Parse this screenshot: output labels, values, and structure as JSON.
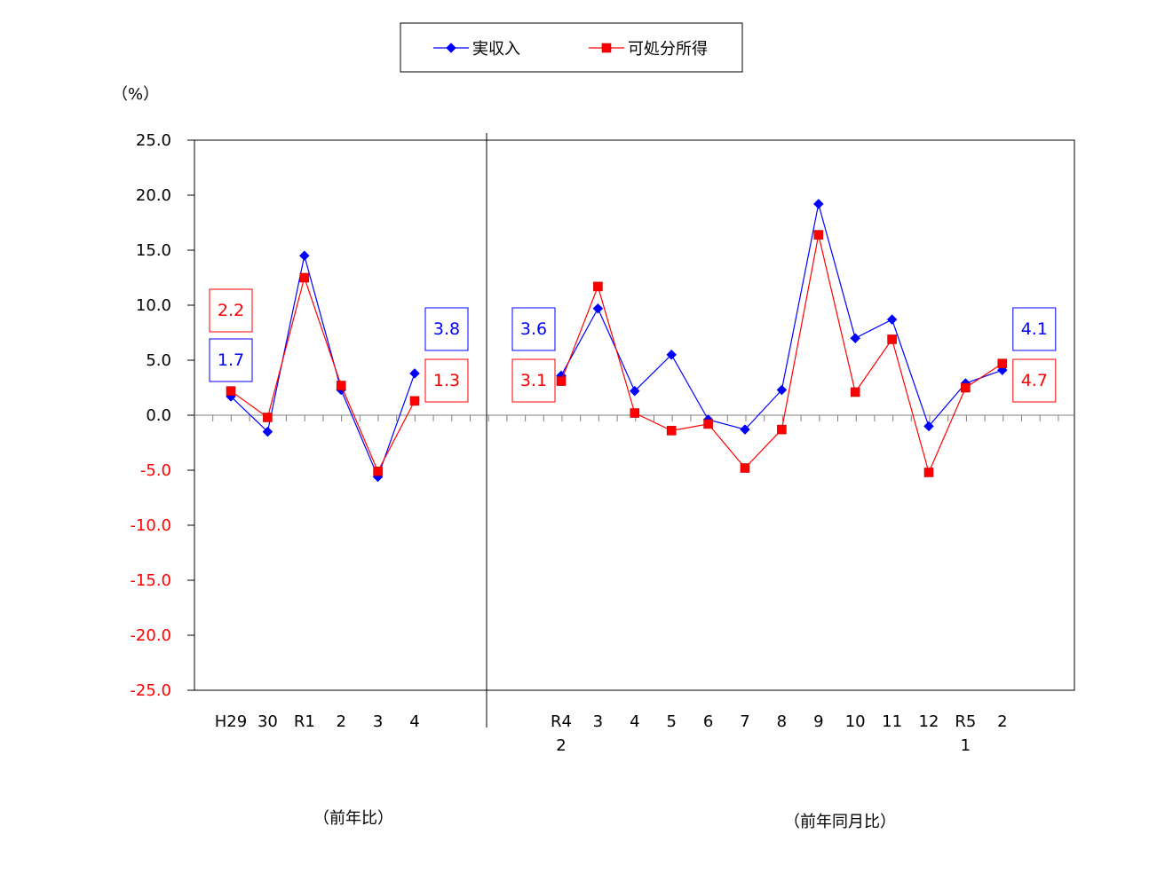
{
  "chart_data": {
    "type": "line",
    "unit": "（%）",
    "ylim": [
      -25,
      25
    ],
    "y_ticks": [
      "25.0",
      "20.0",
      "15.0",
      "10.0",
      "5.0",
      "0.0",
      "-5.0",
      "-10.0",
      "-15.0",
      "-20.0",
      "-25.0"
    ],
    "y_tick_values": [
      25,
      20,
      15,
      10,
      5,
      0,
      -5,
      -10,
      -15,
      -20,
      -25
    ],
    "positive_tick_color": "#000000",
    "negative_tick_color": "#ff0000",
    "legend": {
      "placement": "top-center"
    },
    "series": [
      {
        "name": "実収入",
        "color": "#0000ff",
        "marker": "diamond",
        "annual": [
          1.7,
          -1.5,
          14.5,
          2.3,
          -5.6,
          3.8
        ],
        "monthly": [
          3.6,
          9.7,
          2.2,
          5.5,
          -0.4,
          -1.3,
          2.3,
          19.2,
          7.0,
          8.7,
          -1.0,
          2.9,
          4.1
        ]
      },
      {
        "name": "可処分所得",
        "color": "#ff0000",
        "marker": "square",
        "annual": [
          2.2,
          -0.2,
          12.5,
          2.7,
          -5.1,
          1.3
        ],
        "monthly": [
          3.1,
          11.7,
          0.2,
          -1.4,
          -0.8,
          -4.8,
          -1.3,
          16.4,
          2.1,
          6.9,
          -5.2,
          2.5,
          4.7
        ]
      }
    ],
    "annual_categories": [
      {
        "l1": "H29",
        "l2": ""
      },
      {
        "l1": "30",
        "l2": ""
      },
      {
        "l1": "R1",
        "l2": ""
      },
      {
        "l1": "2",
        "l2": ""
      },
      {
        "l1": "3",
        "l2": ""
      },
      {
        "l1": "4",
        "l2": ""
      }
    ],
    "monthly_categories": [
      {
        "l1": "R4",
        "l2": "2"
      },
      {
        "l1": "3",
        "l2": ""
      },
      {
        "l1": "4",
        "l2": ""
      },
      {
        "l1": "5",
        "l2": ""
      },
      {
        "l1": "6",
        "l2": ""
      },
      {
        "l1": "7",
        "l2": ""
      },
      {
        "l1": "8",
        "l2": ""
      },
      {
        "l1": "9",
        "l2": ""
      },
      {
        "l1": "10",
        "l2": ""
      },
      {
        "l1": "11",
        "l2": ""
      },
      {
        "l1": "12",
        "l2": ""
      },
      {
        "l1": "R5",
        "l2": "1"
      },
      {
        "l1": "2",
        "l2": ""
      }
    ],
    "section_labels": {
      "annual": "（前年比）",
      "monthly": "（前年同月比）"
    },
    "annotations": [
      {
        "text": "2.2",
        "color": "#ff0000",
        "anchor": "annual-first",
        "where": "above"
      },
      {
        "text": "1.7",
        "color": "#0000ff",
        "anchor": "annual-first",
        "where": "mid"
      },
      {
        "text": "3.8",
        "color": "#0000ff",
        "anchor": "annual-last",
        "where": "above"
      },
      {
        "text": "1.3",
        "color": "#ff0000",
        "anchor": "annual-last",
        "where": "mid"
      },
      {
        "text": "3.6",
        "color": "#0000ff",
        "anchor": "monthly-first",
        "where": "above"
      },
      {
        "text": "3.1",
        "color": "#ff0000",
        "anchor": "monthly-first",
        "where": "mid"
      },
      {
        "text": "4.1",
        "color": "#0000ff",
        "anchor": "monthly-last",
        "where": "above"
      },
      {
        "text": "4.7",
        "color": "#ff0000",
        "anchor": "monthly-last",
        "where": "mid"
      }
    ]
  }
}
